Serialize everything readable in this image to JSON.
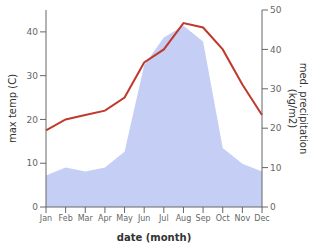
{
  "chart_data": {
    "type": "line",
    "x_label": "date (month)",
    "y_label": "max temp (C)",
    "y2_label": "med. precipitation\n(kg/m2)",
    "categories": [
      "Jan",
      "Feb",
      "Mar",
      "Apr",
      "May",
      "Jun",
      "Jul",
      "Aug",
      "Sep",
      "Oct",
      "Nov",
      "Dec"
    ],
    "series": [
      {
        "type": "area",
        "axis": "y2",
        "color": "#c5cff5",
        "values": [
          8.0,
          10.0,
          9.0,
          10.0,
          14.0,
          36.0,
          43.0,
          46.0,
          42.0,
          15.0,
          11.0,
          9.0
        ]
      },
      {
        "type": "line",
        "axis": "y",
        "color": "#c0392b",
        "values": [
          17.5,
          20.0,
          21.0,
          22.0,
          25.0,
          33.0,
          36.0,
          42.0,
          41.0,
          36.0,
          28.0,
          21.0
        ]
      }
    ],
    "ylim": [
      0,
      45
    ],
    "yticks": [
      0,
      10,
      20,
      30,
      40
    ],
    "y2lim": [
      0,
      50
    ],
    "y2ticks": [
      0,
      10,
      20,
      30,
      40,
      50
    ],
    "grid": false
  }
}
